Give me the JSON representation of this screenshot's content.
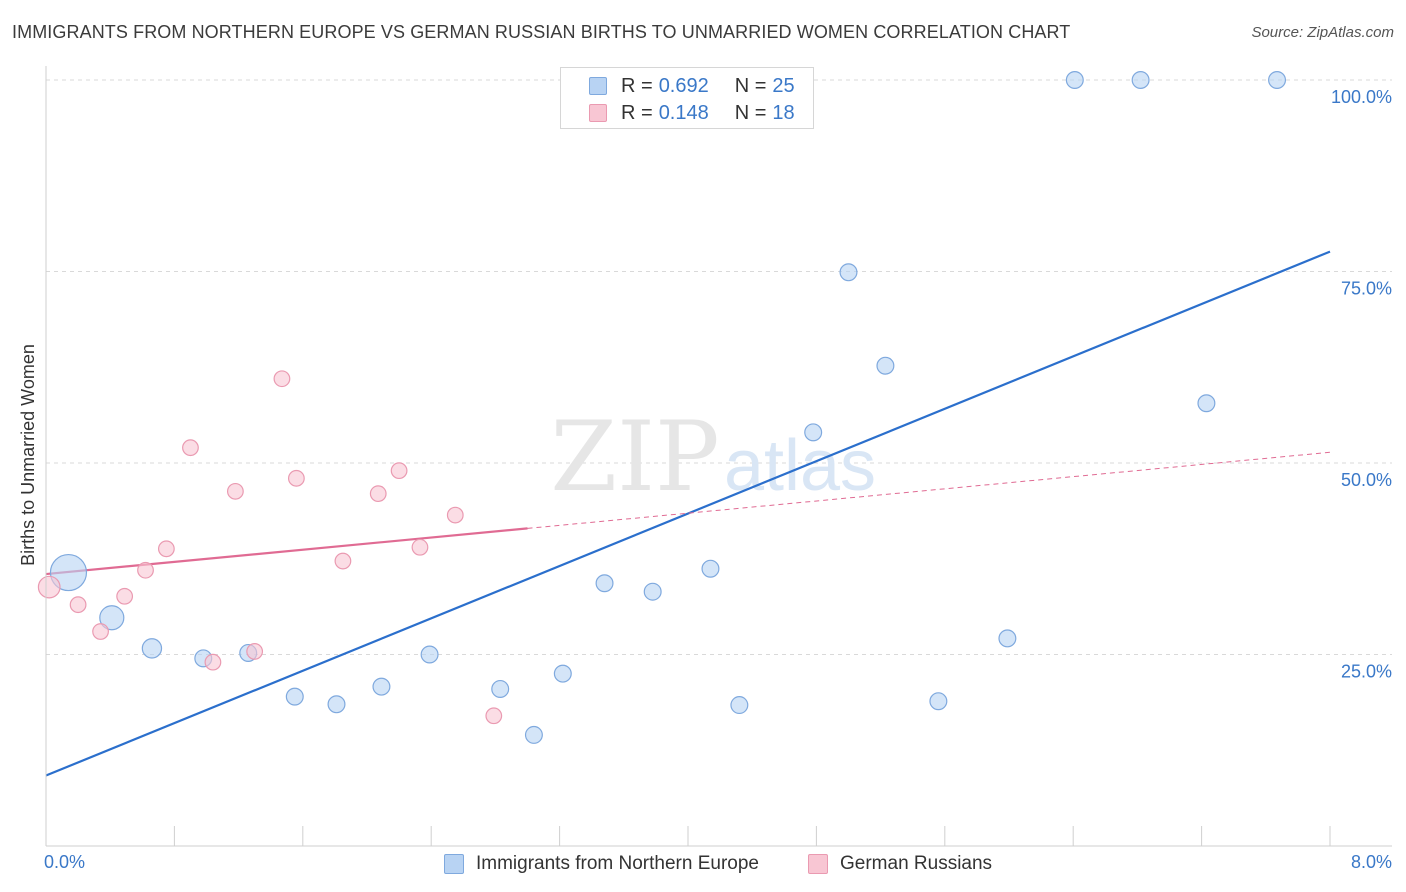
{
  "title": "IMMIGRANTS FROM NORTHERN EUROPE VS GERMAN RUSSIAN BIRTHS TO UNMARRIED WOMEN CORRELATION CHART",
  "source": "Source: ZipAtlas.com",
  "watermark": {
    "zip": "ZIP",
    "atlas": "atlas"
  },
  "legend_top": [
    {
      "r_label": "R =",
      "r_value": "0.692",
      "n_label": "N =",
      "n_value": "25"
    },
    {
      "r_label": "R =",
      "r_value": "0.148",
      "n_label": "N =",
      "n_value": "18"
    }
  ],
  "colors": {
    "blue_fill": "#b8d3f3",
    "blue_stroke": "#7fa9de",
    "blue_line": "#2b6fcc",
    "pink_fill": "#f8c6d3",
    "pink_stroke": "#ea9ab1",
    "pink_line": "#e06b93",
    "grid": "#d9d9d9",
    "axis_label": "#3a78c8"
  },
  "chart_data": {
    "type": "scatter",
    "title": "IMMIGRANTS FROM NORTHERN EUROPE VS GERMAN RUSSIAN BIRTHS TO UNMARRIED WOMEN CORRELATION CHART",
    "xlabel": "",
    "ylabel": "Births to Unmarried Women",
    "xlim": [
      0,
      8
    ],
    "ylim": [
      0,
      100
    ],
    "x_tick_labels": [
      "0.0%",
      "8.0%"
    ],
    "y_ticks": [
      25,
      50,
      75,
      100
    ],
    "y_tick_labels": [
      "25.0%",
      "50.0%",
      "75.0%",
      "100.0%"
    ],
    "grid": true,
    "legend_position": "bottom",
    "series": [
      {
        "name": "Immigrants from Northern Europe",
        "color": "blue",
        "points": [
          {
            "x": 0.14,
            "y": 35.7,
            "size": 3
          },
          {
            "x": 0.41,
            "y": 29.8,
            "size": 2
          },
          {
            "x": 0.66,
            "y": 25.8,
            "size": 1.6
          },
          {
            "x": 0.98,
            "y": 24.5,
            "size": 1.4
          },
          {
            "x": 1.26,
            "y": 25.2,
            "size": 1.4
          },
          {
            "x": 1.55,
            "y": 19.5,
            "size": 1.4
          },
          {
            "x": 1.81,
            "y": 18.5,
            "size": 1.4
          },
          {
            "x": 2.09,
            "y": 20.8,
            "size": 1.4
          },
          {
            "x": 2.39,
            "y": 25.0,
            "size": 1.4
          },
          {
            "x": 2.83,
            "y": 20.5,
            "size": 1.4
          },
          {
            "x": 3.04,
            "y": 14.5,
            "size": 1.4
          },
          {
            "x": 3.22,
            "y": 22.5,
            "size": 1.4
          },
          {
            "x": 3.48,
            "y": 34.3,
            "size": 1.4
          },
          {
            "x": 3.78,
            "y": 33.2,
            "size": 1.4
          },
          {
            "x": 4.14,
            "y": 36.2,
            "size": 1.4
          },
          {
            "x": 4.32,
            "y": 18.4,
            "size": 1.4
          },
          {
            "x": 4.78,
            "y": 54.0,
            "size": 1.4
          },
          {
            "x": 5.0,
            "y": 74.9,
            "size": 1.4
          },
          {
            "x": 5.23,
            "y": 62.7,
            "size": 1.4
          },
          {
            "x": 5.56,
            "y": 18.9,
            "size": 1.4
          },
          {
            "x": 5.99,
            "y": 27.1,
            "size": 1.4
          },
          {
            "x": 6.41,
            "y": 100.0,
            "size": 1.4
          },
          {
            "x": 6.82,
            "y": 100.0,
            "size": 1.4
          },
          {
            "x": 7.23,
            "y": 57.8,
            "size": 1.4
          },
          {
            "x": 7.67,
            "y": 100.0,
            "size": 1.4
          }
        ],
        "trend": {
          "x": [
            0,
            8
          ],
          "y": [
            9.2,
            77.6
          ],
          "dashed_from_x": null
        }
      },
      {
        "name": "German Russians",
        "color": "pink",
        "points": [
          {
            "x": 0.02,
            "y": 33.8,
            "size": 1.8
          },
          {
            "x": 0.2,
            "y": 31.5,
            "size": 1.3
          },
          {
            "x": 0.34,
            "y": 28.0,
            "size": 1.3
          },
          {
            "x": 0.49,
            "y": 32.6,
            "size": 1.3
          },
          {
            "x": 0.62,
            "y": 36.0,
            "size": 1.3
          },
          {
            "x": 0.75,
            "y": 38.8,
            "size": 1.3
          },
          {
            "x": 0.9,
            "y": 52.0,
            "size": 1.3
          },
          {
            "x": 1.04,
            "y": 24.0,
            "size": 1.3
          },
          {
            "x": 1.18,
            "y": 46.3,
            "size": 1.3
          },
          {
            "x": 1.3,
            "y": 25.4,
            "size": 1.3
          },
          {
            "x": 1.47,
            "y": 61.0,
            "size": 1.3
          },
          {
            "x": 1.56,
            "y": 48.0,
            "size": 1.3
          },
          {
            "x": 1.85,
            "y": 37.2,
            "size": 1.3
          },
          {
            "x": 2.07,
            "y": 46.0,
            "size": 1.3
          },
          {
            "x": 2.2,
            "y": 49.0,
            "size": 1.3
          },
          {
            "x": 2.33,
            "y": 39.0,
            "size": 1.3
          },
          {
            "x": 2.55,
            "y": 43.2,
            "size": 1.3
          },
          {
            "x": 2.79,
            "y": 17.0,
            "size": 1.3
          }
        ],
        "trend": {
          "x": [
            0,
            8
          ],
          "y": [
            35.5,
            51.4
          ],
          "dashed_from_x": 3.0
        }
      }
    ]
  }
}
